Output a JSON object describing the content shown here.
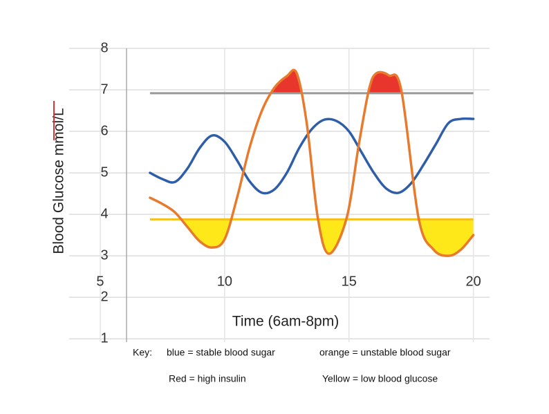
{
  "chart_data": {
    "type": "line",
    "xlabel": "Time (6am-8pm)",
    "ylabel": "Blood Glucose mmol/L",
    "xlim": [
      3.75,
      20.65
    ],
    "ylim": [
      0.92,
      8
    ],
    "xticks": [
      5,
      10,
      15,
      20
    ],
    "yticks": [
      1,
      2,
      3,
      4,
      5,
      6,
      7,
      8
    ],
    "grid": true,
    "series": [
      {
        "name": "blue",
        "color": "#2f5ea8",
        "x": [
          7,
          7.5,
          8,
          8.5,
          9,
          9.5,
          10,
          10.5,
          11,
          11.5,
          12,
          12.5,
          13,
          13.5,
          14,
          14.5,
          15,
          15.5,
          16,
          16.5,
          17,
          17.5,
          18,
          18.5,
          19,
          19.5,
          20
        ],
        "values": [
          5.0,
          4.85,
          4.78,
          5.1,
          5.6,
          5.9,
          5.75,
          5.3,
          4.8,
          4.52,
          4.6,
          5.0,
          5.6,
          6.05,
          6.28,
          6.25,
          6.0,
          5.5,
          5.0,
          4.62,
          4.52,
          4.75,
          5.2,
          5.7,
          6.2,
          6.3,
          6.3
        ]
      },
      {
        "name": "orange",
        "color": "#e87a2e",
        "x": [
          7,
          7.5,
          8,
          8.5,
          9,
          9.5,
          10,
          10.5,
          11,
          11.5,
          12,
          12.5,
          12.9,
          13.3,
          13.75,
          14.2,
          14.9,
          15.4,
          15.8,
          16.1,
          16.6,
          17.1,
          17.8,
          18.4,
          19,
          19.5,
          20
        ],
        "values": [
          4.4,
          4.25,
          4.05,
          3.7,
          3.35,
          3.2,
          3.4,
          4.4,
          5.6,
          6.5,
          7.05,
          7.33,
          7.4,
          6.2,
          3.9,
          3.05,
          3.9,
          5.7,
          7.0,
          7.4,
          7.35,
          7.0,
          3.9,
          3.15,
          3.0,
          3.15,
          3.5
        ]
      }
    ],
    "thresholds": [
      {
        "value": 6.92,
        "x": [
          7,
          20
        ],
        "color": "#999999",
        "fill": "#e8362c",
        "side": "above"
      },
      {
        "value": 3.88,
        "x": [
          7,
          20
        ],
        "color": "#f5c01a",
        "fill": "#ffe81a",
        "side": "below"
      }
    ],
    "key": [
      "Key:",
      "blue = stable blood sugar",
      "orange = unstable blood sugar",
      "Red = high insulin",
      "Yellow = low blood glucose"
    ]
  }
}
